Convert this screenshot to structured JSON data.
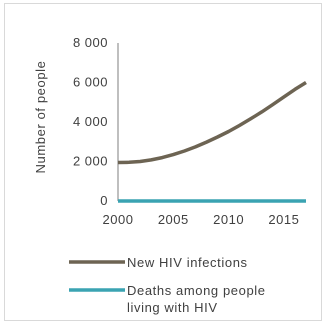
{
  "chart_data": {
    "type": "line",
    "title": "",
    "xlabel": "",
    "ylabel": "Number of people",
    "xlim": [
      2000,
      2017
    ],
    "ylim": [
      0,
      8000
    ],
    "grid": false,
    "legend_position": "bottom",
    "x_ticks": [
      2000,
      2005,
      2010,
      2015
    ],
    "x_tick_labels": [
      "2000",
      "2005",
      "2010",
      "2015"
    ],
    "y_ticks": [
      0,
      2000,
      4000,
      6000,
      8000
    ],
    "y_tick_labels": [
      "0",
      "2 000",
      "4 000",
      "6 000",
      "8 000"
    ],
    "x": [
      2000,
      2001,
      2002,
      2003,
      2004,
      2005,
      2006,
      2007,
      2008,
      2009,
      2010,
      2011,
      2012,
      2013,
      2014,
      2015,
      2016,
      2017
    ],
    "series": [
      {
        "name": "New HIV infections",
        "color": "#6d6453",
        "values": [
          1950,
          1960,
          2000,
          2080,
          2200,
          2350,
          2530,
          2740,
          2980,
          3240,
          3520,
          3830,
          4160,
          4510,
          4880,
          5270,
          5650,
          6000
        ]
      },
      {
        "name": "Deaths among people living with HIV",
        "color": "#3aa3b2",
        "values": [
          0,
          0,
          0,
          0,
          0,
          0,
          0,
          0,
          0,
          0,
          0,
          0,
          0,
          0,
          0,
          0,
          0,
          0
        ]
      }
    ],
    "legend": {
      "items": [
        {
          "lines": [
            "New HIV infections"
          ]
        },
        {
          "lines": [
            "Deaths among people",
            "living with HIV"
          ]
        }
      ]
    }
  }
}
